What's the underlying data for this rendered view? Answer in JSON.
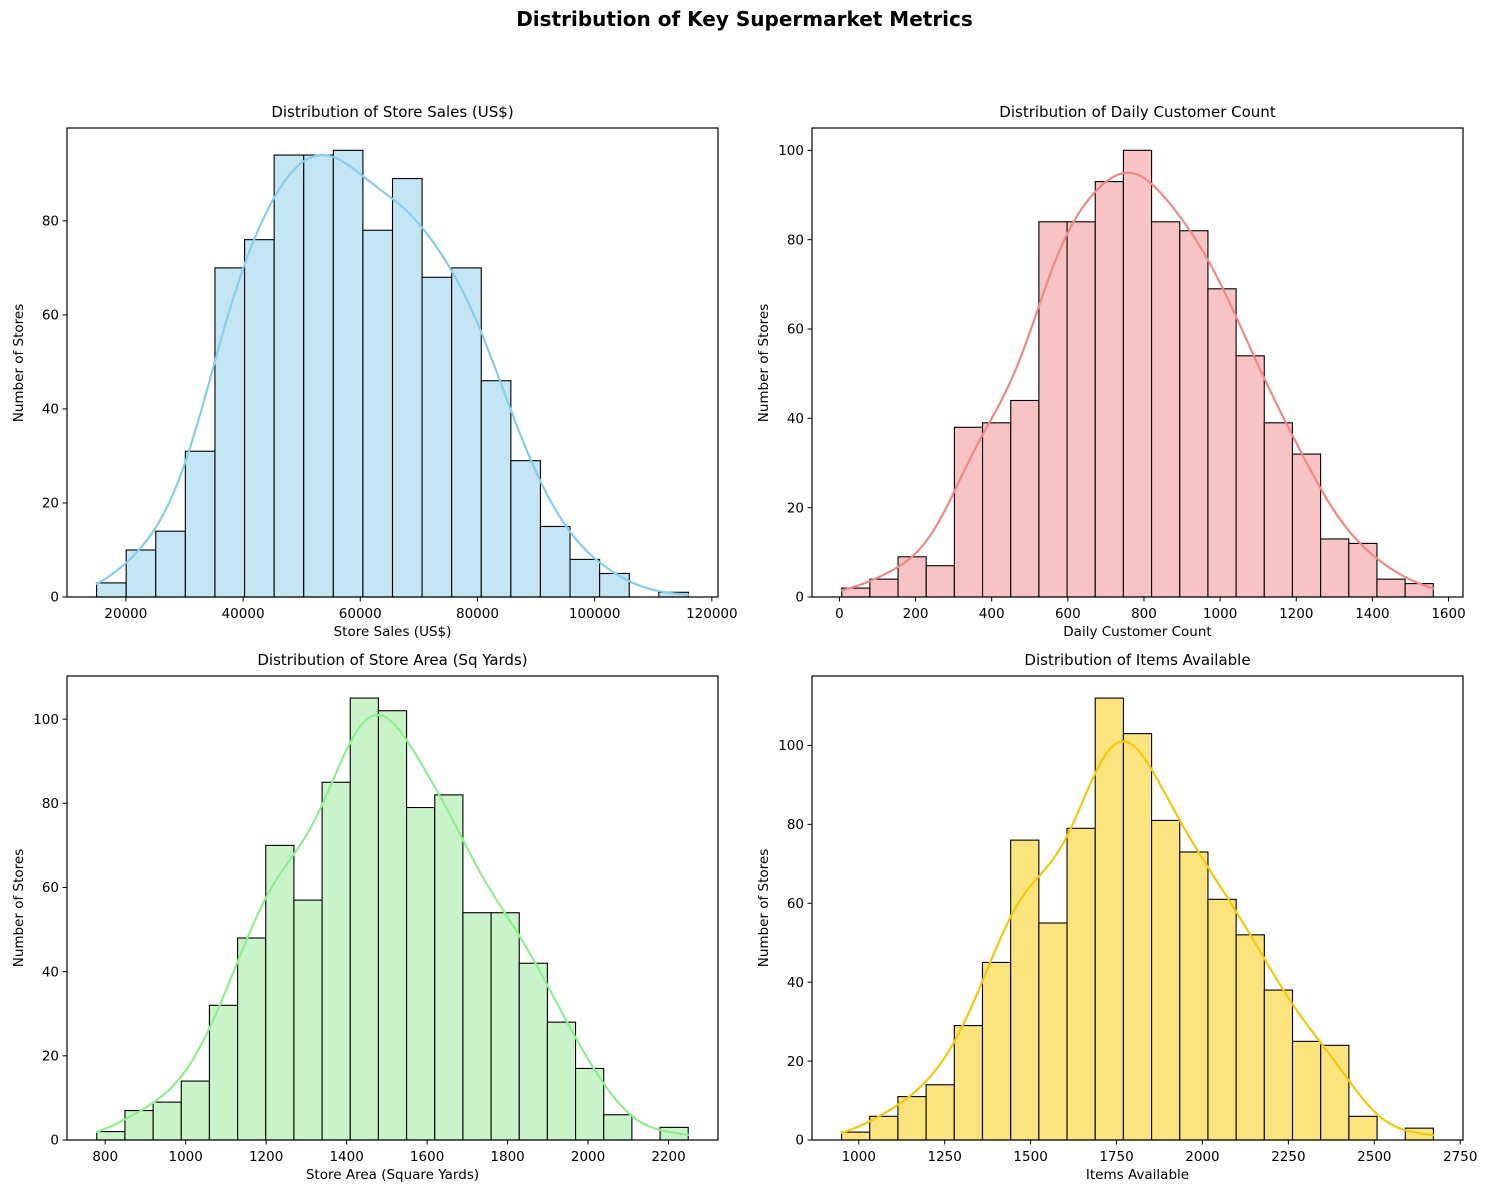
{
  "figure": {
    "title": "Distribution of Key Supermarket Metrics",
    "background": "#ffffff",
    "text_color": "#000000"
  },
  "chart_data": [
    {
      "id": "store-sales",
      "type": "bar",
      "subtype": "histogram",
      "kde": true,
      "title": "Distribution of Store Sales (US$)",
      "xlabel": "Store Sales (US$)",
      "ylabel": "Number of Stores",
      "bar_fill": "#C4E5F3",
      "bar_edge": "#000000",
      "kde_color": "#87CEEB",
      "bin_start": 15000,
      "bin_width": 5050,
      "values": [
        3,
        10,
        14,
        31,
        70,
        76,
        94,
        94,
        95,
        78,
        89,
        68,
        70,
        46,
        29,
        15,
        8,
        5,
        0,
        1
      ],
      "xticks": [
        20000,
        40000,
        60000,
        80000,
        100000,
        120000
      ],
      "yticks": [
        0,
        20,
        40,
        60,
        80
      ],
      "xlim": [
        9950,
        121050
      ],
      "ylim": [
        0,
        99.75
      ],
      "kde_peak": 94,
      "grid": false,
      "legend": "none"
    },
    {
      "id": "daily-customer-count",
      "type": "bar",
      "subtype": "histogram",
      "kde": true,
      "title": "Distribution of Daily Customer Count",
      "xlabel": "Daily Customer Count",
      "ylabel": "Number of Stores",
      "bar_fill": "#F7C3C4",
      "bar_edge": "#000000",
      "kde_color": "#F08984",
      "bin_start": 6,
      "bin_width": 74,
      "values": [
        2,
        4,
        9,
        7,
        38,
        39,
        44,
        84,
        84,
        93,
        100,
        84,
        82,
        69,
        54,
        39,
        32,
        13,
        12,
        4,
        3
      ],
      "xticks": [
        0,
        200,
        400,
        600,
        800,
        1000,
        1200,
        1400,
        1600
      ],
      "yticks": [
        0,
        20,
        40,
        60,
        80,
        100
      ],
      "xlim": [
        -72,
        1638
      ],
      "ylim": [
        0,
        105
      ],
      "kde_peak": 95,
      "grid": false,
      "legend": "none"
    },
    {
      "id": "store-area",
      "type": "bar",
      "subtype": "histogram",
      "kde": true,
      "title": "Distribution of Store Area (Sq Yards)",
      "xlabel": "Store Area (Square Yards)",
      "ylabel": "Number of Stores",
      "bar_fill": "#C9F3C8",
      "bar_edge": "#000000",
      "kde_color": "#90EE90",
      "bin_start": 779,
      "bin_width": 70,
      "values": [
        2,
        7,
        9,
        14,
        32,
        48,
        70,
        57,
        85,
        105,
        102,
        79,
        82,
        54,
        54,
        42,
        28,
        17,
        6,
        0,
        3
      ],
      "xticks": [
        800,
        1000,
        1200,
        1400,
        1600,
        1800,
        2000,
        2200
      ],
      "yticks": [
        0,
        20,
        40,
        60,
        80,
        100
      ],
      "xlim": [
        705,
        2323
      ],
      "ylim": [
        0,
        110.25
      ],
      "kde_peak": 101,
      "grid": false,
      "legend": "none"
    },
    {
      "id": "items-available",
      "type": "bar",
      "subtype": "histogram",
      "kde": true,
      "title": "Distribution of Items Available",
      "xlabel": "Items Available",
      "ylabel": "Number of Stores",
      "bar_fill": "#FBE47E",
      "bar_edge": "#000000",
      "kde_color": "#F2C90E",
      "bin_start": 950,
      "bin_width": 82,
      "values": [
        2,
        6,
        11,
        14,
        29,
        45,
        76,
        55,
        79,
        112,
        103,
        81,
        73,
        61,
        52,
        38,
        25,
        24,
        6,
        0,
        3
      ],
      "xticks": [
        1000,
        1250,
        1500,
        1750,
        2000,
        2250,
        2500,
        2750
      ],
      "yticks": [
        0,
        20,
        40,
        60,
        80,
        100
      ],
      "xlim": [
        864,
        2758
      ],
      "ylim": [
        0,
        117.6
      ],
      "kde_peak": 101,
      "grid": false,
      "legend": "none"
    }
  ]
}
